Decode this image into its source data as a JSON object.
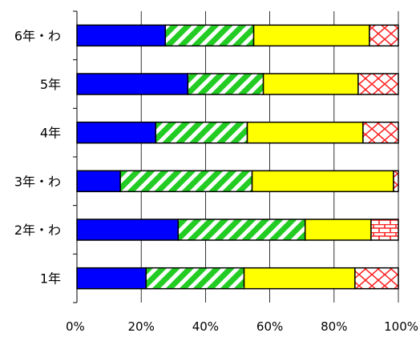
{
  "chart_data": {
    "type": "bar",
    "orientation": "horizontal",
    "stacked": true,
    "normalized": true,
    "categories": [
      "6年・わ",
      "5年",
      "4年",
      "3年・わ",
      "2年・わ",
      "1年"
    ],
    "series": [
      {
        "values": [
          27.5,
          34.5,
          24.5,
          13.5,
          31.5,
          21.5
        ],
        "color": "#0000ff",
        "pattern": "solid"
      },
      {
        "values": [
          27.5,
          23.5,
          28.5,
          41.0,
          39.5,
          30.5
        ],
        "color": "#22cc22",
        "pattern": "diagonal-stripes"
      },
      {
        "values": [
          36.0,
          29.5,
          36.0,
          44.0,
          20.5,
          34.5
        ],
        "color": "#ffff00",
        "pattern": "solid"
      },
      {
        "values": [
          9.0,
          12.5,
          11.0,
          1.5,
          8.5,
          13.5
        ],
        "color": "#ff2222",
        "pattern": "lattice"
      }
    ],
    "xlim": [
      0,
      100
    ],
    "x_ticks": [
      "0%",
      "20%",
      "40%",
      "60%",
      "80%",
      "100%"
    ],
    "grid": true,
    "legend": false
  }
}
